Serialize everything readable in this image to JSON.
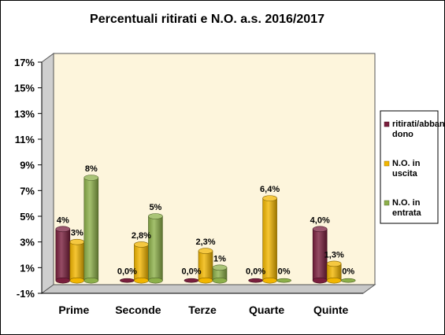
{
  "chart_data": {
    "type": "bar",
    "title": "Percentuali  ritirati  e N.O. a.s. 2016/2017",
    "categories": [
      "Prime",
      "Seconde",
      "Terze",
      "Quarte",
      "Quinte"
    ],
    "series": [
      {
        "name": "ritirati/abbandono",
        "legend_lines": [
          "ritirati/abban",
          "dono"
        ],
        "color": "#7a1f3d",
        "values": [
          4.0,
          0.0,
          0.0,
          0.0,
          4.0
        ],
        "labels": [
          "4%",
          "0,0%",
          "0,0%",
          "0,0%",
          "4,0%"
        ]
      },
      {
        "name": "N.O. in uscita",
        "legend_lines": [
          "N.O. in",
          "uscita"
        ],
        "color": "#f2b600",
        "values": [
          3.0,
          2.8,
          2.3,
          6.4,
          1.3
        ],
        "labels": [
          "3%",
          "2,8%",
          "2,3%",
          "6,4%",
          "1,3%"
        ]
      },
      {
        "name": "N.O. in entrata",
        "legend_lines": [
          "N.O. in",
          "entrata"
        ],
        "color": "#8db04a",
        "values": [
          8.0,
          5.0,
          1.0,
          0.0,
          0.0
        ],
        "labels": [
          "8%",
          "5%",
          "1%",
          "0%",
          "0%"
        ]
      }
    ],
    "yticks": [
      "17%",
      "15%",
      "13%",
      "11%",
      "9%",
      "7%",
      "5%",
      "3%",
      "1%",
      "-1%"
    ],
    "ytick_values": [
      17,
      15,
      13,
      11,
      9,
      7,
      5,
      3,
      1,
      -1
    ],
    "ylim": [
      -1,
      17
    ],
    "grid": false,
    "legend_position": "right",
    "plot_background": "#fdf5dc"
  }
}
